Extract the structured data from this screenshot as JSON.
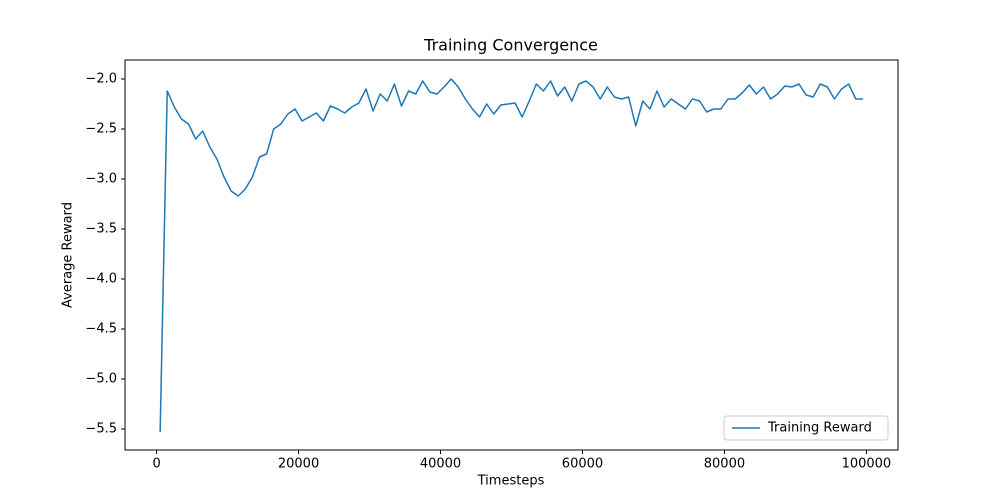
{
  "chart_data": {
    "type": "line",
    "title": "Training Convergence",
    "x_label": "Timesteps",
    "y_label": "Average Reward",
    "x": [
      500,
      1500,
      2500,
      3500,
      4500,
      5500,
      6500,
      7500,
      8500,
      9500,
      10500,
      11500,
      12500,
      13500,
      14500,
      15500,
      16500,
      17500,
      18500,
      19500,
      20500,
      21500,
      22500,
      23500,
      24500,
      25500,
      26500,
      27500,
      28500,
      29500,
      30500,
      31500,
      32500,
      33500,
      34500,
      35500,
      36500,
      37500,
      38500,
      39500,
      40500,
      41500,
      42500,
      43500,
      44500,
      45500,
      46500,
      47500,
      48500,
      49500,
      50500,
      51500,
      52500,
      53500,
      54500,
      55500,
      56500,
      57500,
      58500,
      59500,
      60500,
      61500,
      62500,
      63500,
      64500,
      65500,
      66500,
      67500,
      68500,
      69500,
      70500,
      71500,
      72500,
      73500,
      74500,
      75500,
      76500,
      77500,
      78500,
      79500,
      80500,
      81500,
      82500,
      83500,
      84500,
      85500,
      86500,
      87500,
      88500,
      89500,
      90500,
      91500,
      92500,
      93500,
      94500,
      95500,
      96500,
      97500,
      98500,
      99500
    ],
    "series": [
      {
        "name": "Training Reward",
        "color": "#1f77b4",
        "values": [
          -5.53,
          -2.12,
          -2.28,
          -2.4,
          -2.45,
          -2.6,
          -2.52,
          -2.68,
          -2.8,
          -2.98,
          -3.12,
          -3.17,
          -3.1,
          -2.98,
          -2.78,
          -2.75,
          -2.5,
          -2.45,
          -2.35,
          -2.3,
          -2.42,
          -2.38,
          -2.34,
          -2.42,
          -2.27,
          -2.3,
          -2.34,
          -2.28,
          -2.24,
          -2.1,
          -2.32,
          -2.15,
          -2.22,
          -2.05,
          -2.27,
          -2.12,
          -2.15,
          -2.02,
          -2.13,
          -2.15,
          -2.08,
          -2.0,
          -2.08,
          -2.2,
          -2.3,
          -2.38,
          -2.25,
          -2.35,
          -2.26,
          -2.25,
          -2.24,
          -2.38,
          -2.22,
          -2.05,
          -2.12,
          -2.02,
          -2.17,
          -2.08,
          -2.22,
          -2.05,
          -2.02,
          -2.08,
          -2.2,
          -2.08,
          -2.18,
          -2.2,
          -2.18,
          -2.47,
          -2.22,
          -2.3,
          -2.12,
          -2.28,
          -2.2,
          -2.25,
          -2.3,
          -2.2,
          -2.22,
          -2.33,
          -2.3,
          -2.3,
          -2.2,
          -2.2,
          -2.14,
          -2.06,
          -2.15,
          -2.08,
          -2.2,
          -2.15,
          -2.07,
          -2.08,
          -2.05,
          -2.16,
          -2.18,
          -2.05,
          -2.08,
          -2.2,
          -2.1,
          -2.05,
          -2.2,
          -2.2
        ]
      }
    ],
    "xlim": [
      -4450,
      104450
    ],
    "xticks": [
      0,
      20000,
      40000,
      60000,
      80000,
      100000
    ],
    "ylim": [
      -5.71,
      -1.81
    ],
    "yticks": [
      {
        "value": -5.5,
        "label": "−5.5"
      },
      {
        "value": -5.0,
        "label": "−5.0"
      },
      {
        "value": -4.5,
        "label": "−4.5"
      },
      {
        "value": -4.0,
        "label": "−4.0"
      },
      {
        "value": -3.5,
        "label": "−3.5"
      },
      {
        "value": -3.0,
        "label": "−3.0"
      },
      {
        "value": -2.5,
        "label": "−2.5"
      },
      {
        "value": -2.0,
        "label": "−2.0"
      }
    ],
    "grid": false,
    "legend_loc": "lower right"
  }
}
